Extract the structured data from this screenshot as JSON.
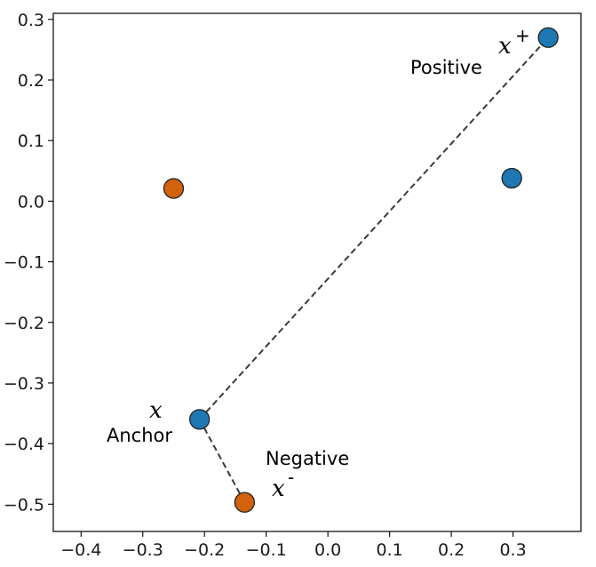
{
  "chart_data": {
    "type": "scatter",
    "title": "",
    "xlabel": "",
    "ylabel": "",
    "xlim": [
      -0.445,
      0.41
    ],
    "ylim": [
      -0.545,
      0.31
    ],
    "xticks": [
      -0.4,
      -0.3,
      -0.2,
      -0.1,
      0.0,
      0.1,
      0.2,
      0.3
    ],
    "xtick_labels": [
      "−0.4",
      "−0.3",
      "−0.2",
      "−0.1",
      "0.0",
      "0.1",
      "0.2",
      "0.3"
    ],
    "yticks": [
      0.3,
      0.2,
      0.1,
      0.0,
      -0.1,
      -0.2,
      -0.3,
      -0.4,
      -0.5
    ],
    "ytick_labels": [
      "0.3",
      "0.2",
      "0.1",
      "0.0",
      "−0.1",
      "−0.2",
      "−0.3",
      "−0.4",
      "−0.5"
    ],
    "grid": false,
    "colors": {
      "blue": "#1f77b4",
      "orange": "#d2620c",
      "edge": "#222222",
      "link": "#3a3a3a"
    },
    "points": [
      {
        "x": 0.357,
        "y": 0.27,
        "color": "blue"
      },
      {
        "x": 0.298,
        "y": 0.038,
        "color": "blue"
      },
      {
        "x": -0.208,
        "y": -0.36,
        "color": "blue"
      },
      {
        "x": -0.25,
        "y": 0.021,
        "color": "orange"
      },
      {
        "x": -0.135,
        "y": -0.497,
        "color": "orange"
      }
    ],
    "links": [
      {
        "from": [
          -0.208,
          -0.36
        ],
        "to": [
          0.357,
          0.27
        ]
      },
      {
        "from": [
          -0.208,
          -0.36
        ],
        "to": [
          -0.135,
          -0.497
        ]
      }
    ],
    "annotations": {
      "positive_label": "Positive",
      "positive_symbol": "x",
      "positive_sup": "+",
      "anchor_label": "Anchor",
      "anchor_symbol": "x",
      "negative_label": "Negative",
      "negative_symbol": "x",
      "negative_sup": "-"
    }
  }
}
